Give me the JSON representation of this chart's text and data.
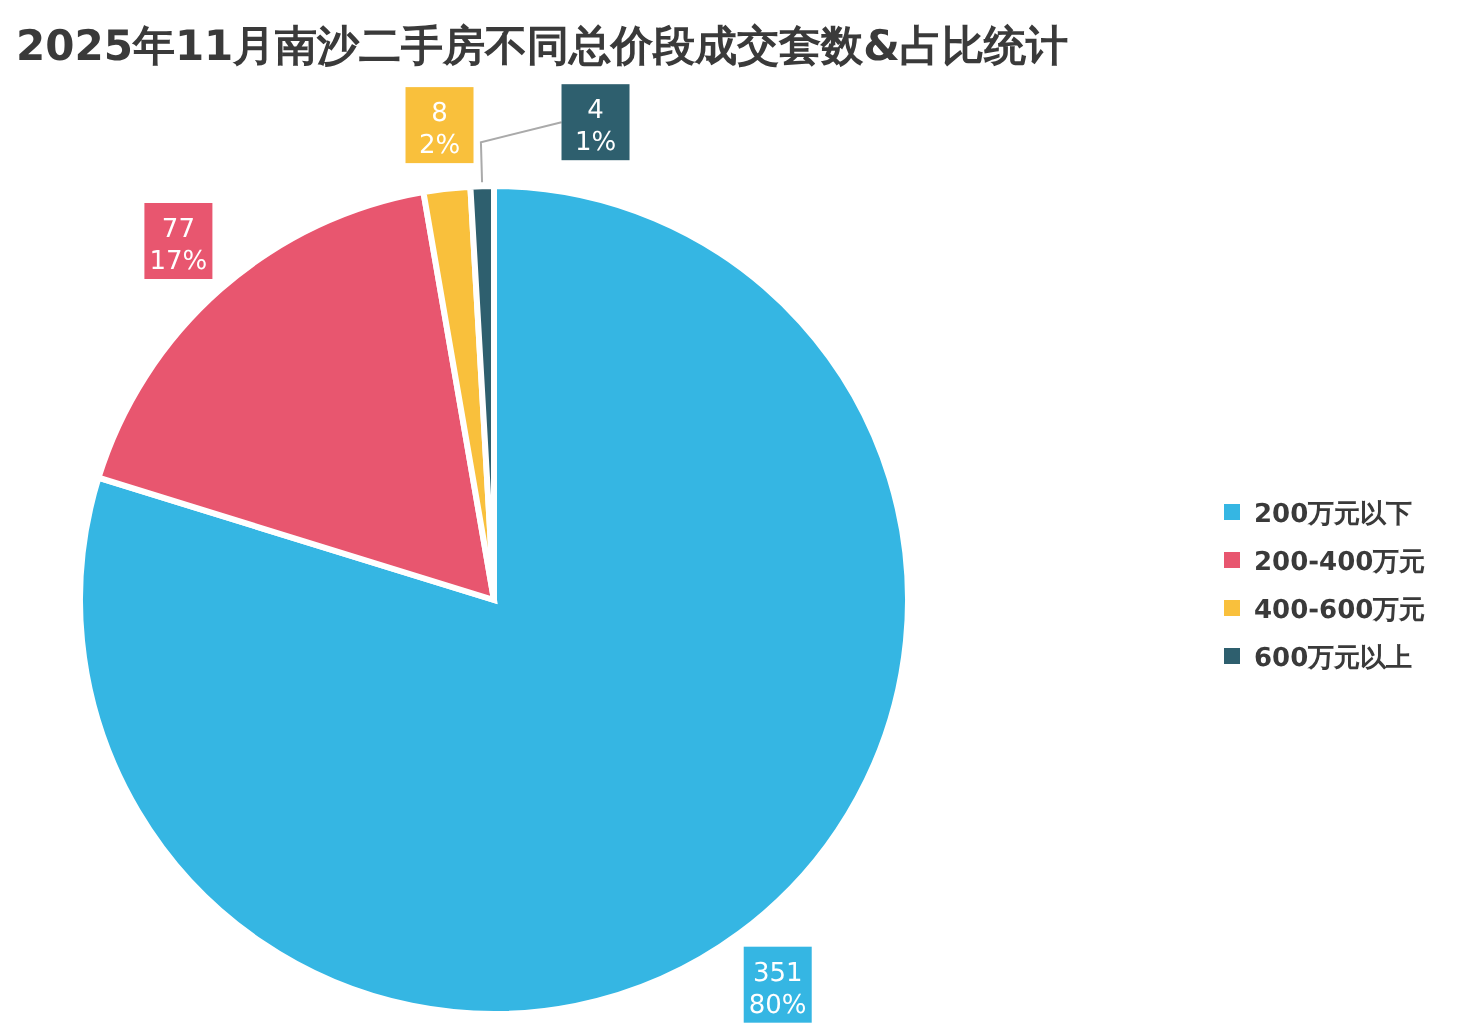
{
  "chart_data": {
    "type": "pie",
    "title": "2025年11月南沙二手房不同总价段成交套数&占比统计",
    "categories": [
      "200万元以下",
      "200-400万元",
      "400-600万元",
      "600万元以上"
    ],
    "values": [
      351,
      77,
      8,
      4
    ],
    "value_labels": [
      "351\n80%",
      "77\n17%",
      "8\n2%",
      "4\n1%"
    ],
    "colors": [
      "#35b6e3",
      "#e8566f",
      "#f9c03c",
      "#2e5f6e"
    ],
    "legend": "right"
  }
}
